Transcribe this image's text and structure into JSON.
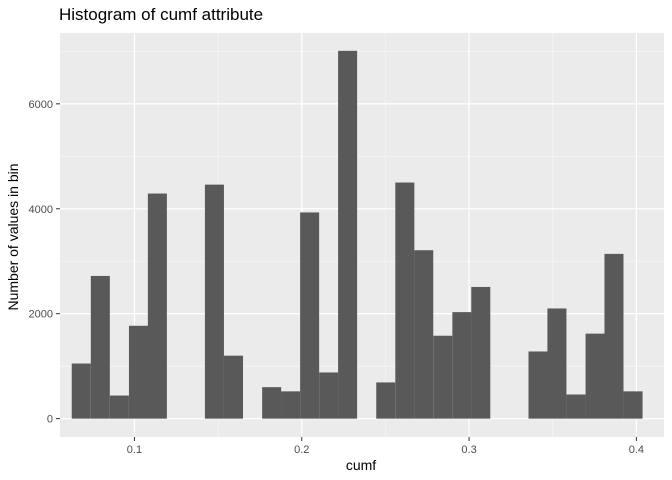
{
  "chart_data": {
    "type": "bar",
    "title": "Histogram of cumf attribute",
    "xlabel": "cumf",
    "ylabel": "Number of values in bin",
    "xlim": [
      0.0555,
      0.4165
    ],
    "ylim": [
      -350,
      7350
    ],
    "x_ticks": [
      0.1,
      0.2,
      0.3,
      0.4
    ],
    "x_tick_labels": [
      "0.1",
      "0.2",
      "0.3",
      "0.4"
    ],
    "y_ticks": [
      0,
      2000,
      4000,
      6000
    ],
    "y_tick_labels": [
      "0",
      "2000",
      "4000",
      "6000"
    ],
    "bin_width": 0.01137,
    "bins": [
      {
        "x": 0.0682,
        "value": 1050
      },
      {
        "x": 0.0796,
        "value": 2720
      },
      {
        "x": 0.091,
        "value": 440
      },
      {
        "x": 0.1024,
        "value": 1770
      },
      {
        "x": 0.1137,
        "value": 4290
      },
      {
        "x": 0.1251,
        "value": 0
      },
      {
        "x": 0.1365,
        "value": 0
      },
      {
        "x": 0.1478,
        "value": 4460
      },
      {
        "x": 0.1592,
        "value": 1200
      },
      {
        "x": 0.1706,
        "value": 0
      },
      {
        "x": 0.182,
        "value": 600
      },
      {
        "x": 0.1933,
        "value": 520
      },
      {
        "x": 0.2047,
        "value": 3930
      },
      {
        "x": 0.2161,
        "value": 880
      },
      {
        "x": 0.2274,
        "value": 7010
      },
      {
        "x": 0.2388,
        "value": 0
      },
      {
        "x": 0.2502,
        "value": 690
      },
      {
        "x": 0.2616,
        "value": 4500
      },
      {
        "x": 0.2729,
        "value": 3210
      },
      {
        "x": 0.2843,
        "value": 1580
      },
      {
        "x": 0.2957,
        "value": 2030
      },
      {
        "x": 0.307,
        "value": 2510
      },
      {
        "x": 0.3184,
        "value": 0
      },
      {
        "x": 0.3298,
        "value": 0
      },
      {
        "x": 0.3412,
        "value": 1280
      },
      {
        "x": 0.3525,
        "value": 2100
      },
      {
        "x": 0.3639,
        "value": 460
      },
      {
        "x": 0.3753,
        "value": 1620
      },
      {
        "x": 0.3866,
        "value": 3140
      },
      {
        "x": 0.398,
        "value": 520
      }
    ],
    "colors": {
      "bar": "#595959",
      "panel": "#ebebeb",
      "grid_major": "#ffffff",
      "grid_minor": "#f5f5f5",
      "tick": "#333333"
    },
    "grid": true,
    "legend": "none"
  }
}
